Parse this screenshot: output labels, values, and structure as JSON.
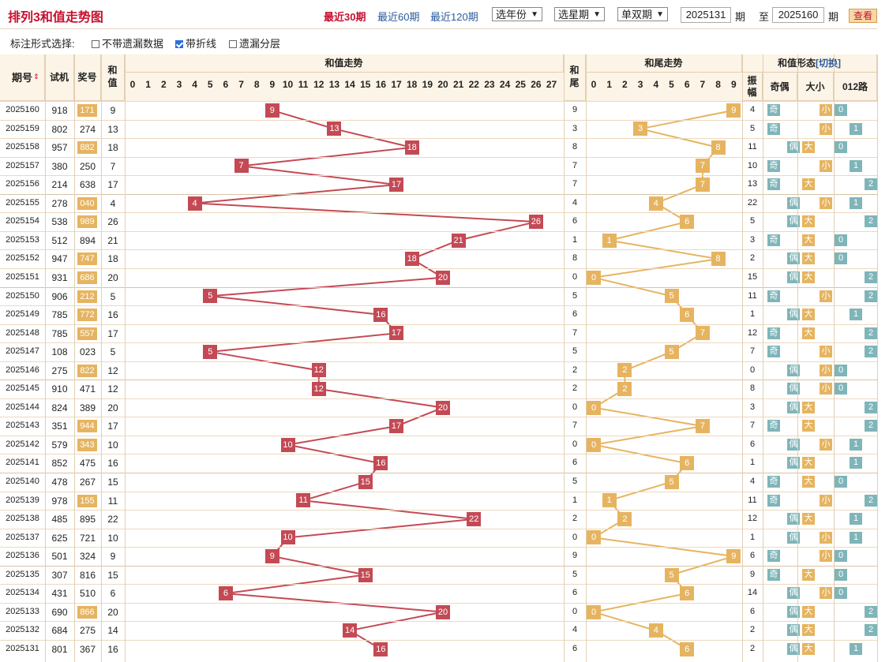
{
  "title": "排列3和值走势图",
  "quick_links": [
    "最近30期",
    "最近60期",
    "最近120期"
  ],
  "active_link": 0,
  "selects": [
    "选年份",
    "选星期",
    "单双期"
  ],
  "range": {
    "from": "2025131",
    "from_suffix": "期",
    "to_label": "至",
    "to": "2025160",
    "to_suffix": "期"
  },
  "view_button": "查看",
  "options": {
    "label": "标注形式选择:",
    "items": [
      {
        "label": "不带遗漏数据",
        "checked": false
      },
      {
        "label": "带折线",
        "checked": true
      },
      {
        "label": "遗漏分层",
        "checked": false
      }
    ]
  },
  "headers": {
    "issue": "期号",
    "trial": "试机",
    "prize": "奖号",
    "sum": "和值",
    "sum_trend": "和值走势",
    "tail": "和尾",
    "tail_trend": "和尾走势",
    "form": "和值形态",
    "switch": "[切换]",
    "amp": "振幅",
    "oe": "奇偶",
    "bs": "大小",
    "r012": "012路"
  },
  "sum_cols": [
    "0",
    "1",
    "2",
    "3",
    "4",
    "5",
    "6",
    "7",
    "8",
    "9",
    "10",
    "11",
    "12",
    "13",
    "14",
    "15",
    "16",
    "17",
    "18",
    "19",
    "20",
    "21",
    "22",
    "23",
    "24",
    "25",
    "26",
    "27"
  ],
  "tail_cols": [
    "0",
    "1",
    "2",
    "3",
    "4",
    "5",
    "6",
    "7",
    "8",
    "9"
  ],
  "rows": [
    {
      "issue": "2025160",
      "trial": "918",
      "prize": "171",
      "prize_hl": true,
      "sum": 9,
      "tail": 9,
      "amp": 4,
      "oe": "奇",
      "bs": "小",
      "r012": 0
    },
    {
      "issue": "2025159",
      "trial": "802",
      "prize": "274",
      "prize_hl": false,
      "sum": 13,
      "tail": 3,
      "amp": 5,
      "oe": "奇",
      "bs": "小",
      "r012": 1
    },
    {
      "issue": "2025158",
      "trial": "957",
      "prize": "882",
      "prize_hl": true,
      "sum": 18,
      "tail": 8,
      "amp": 11,
      "oe": "偶",
      "bs": "大",
      "r012": 0
    },
    {
      "issue": "2025157",
      "trial": "380",
      "prize": "250",
      "prize_hl": false,
      "sum": 7,
      "tail": 7,
      "amp": 10,
      "oe": "奇",
      "bs": "小",
      "r012": 1
    },
    {
      "issue": "2025156",
      "trial": "214",
      "prize": "638",
      "prize_hl": false,
      "sum": 17,
      "tail": 7,
      "amp": 13,
      "oe": "奇",
      "bs": "大",
      "r012": 2
    },
    {
      "issue": "2025155",
      "trial": "278",
      "prize": "040",
      "prize_hl": true,
      "sum": 4,
      "tail": 4,
      "amp": 22,
      "oe": "偶",
      "bs": "小",
      "r012": 1
    },
    {
      "issue": "2025154",
      "trial": "538",
      "prize": "989",
      "prize_hl": true,
      "sum": 26,
      "tail": 6,
      "amp": 5,
      "oe": "偶",
      "bs": "大",
      "r012": 2
    },
    {
      "issue": "2025153",
      "trial": "512",
      "prize": "894",
      "prize_hl": false,
      "sum": 21,
      "tail": 1,
      "amp": 3,
      "oe": "奇",
      "bs": "大",
      "r012": 0
    },
    {
      "issue": "2025152",
      "trial": "947",
      "prize": "747",
      "prize_hl": true,
      "sum": 18,
      "tail": 8,
      "amp": 2,
      "oe": "偶",
      "bs": "大",
      "r012": 0
    },
    {
      "issue": "2025151",
      "trial": "931",
      "prize": "686",
      "prize_hl": true,
      "sum": 20,
      "tail": 0,
      "amp": 15,
      "oe": "偶",
      "bs": "大",
      "r012": 2
    },
    {
      "issue": "2025150",
      "trial": "906",
      "prize": "212",
      "prize_hl": true,
      "sum": 5,
      "tail": 5,
      "amp": 11,
      "oe": "奇",
      "bs": "小",
      "r012": 2
    },
    {
      "issue": "2025149",
      "trial": "785",
      "prize": "772",
      "prize_hl": true,
      "sum": 16,
      "tail": 6,
      "amp": 1,
      "oe": "偶",
      "bs": "大",
      "r012": 1
    },
    {
      "issue": "2025148",
      "trial": "785",
      "prize": "557",
      "prize_hl": true,
      "sum": 17,
      "tail": 7,
      "amp": 12,
      "oe": "奇",
      "bs": "大",
      "r012": 2
    },
    {
      "issue": "2025147",
      "trial": "108",
      "prize": "023",
      "prize_hl": false,
      "sum": 5,
      "tail": 5,
      "amp": 7,
      "oe": "奇",
      "bs": "小",
      "r012": 2
    },
    {
      "issue": "2025146",
      "trial": "275",
      "prize": "822",
      "prize_hl": true,
      "sum": 12,
      "tail": 2,
      "amp": 0,
      "oe": "偶",
      "bs": "小",
      "r012": 0
    },
    {
      "issue": "2025145",
      "trial": "910",
      "prize": "471",
      "prize_hl": false,
      "sum": 12,
      "tail": 2,
      "amp": 8,
      "oe": "偶",
      "bs": "小",
      "r012": 0
    },
    {
      "issue": "2025144",
      "trial": "824",
      "prize": "389",
      "prize_hl": false,
      "sum": 20,
      "tail": 0,
      "amp": 3,
      "oe": "偶",
      "bs": "大",
      "r012": 2
    },
    {
      "issue": "2025143",
      "trial": "351",
      "prize": "944",
      "prize_hl": true,
      "sum": 17,
      "tail": 7,
      "amp": 7,
      "oe": "奇",
      "bs": "大",
      "r012": 2
    },
    {
      "issue": "2025142",
      "trial": "579",
      "prize": "343",
      "prize_hl": true,
      "sum": 10,
      "tail": 0,
      "amp": 6,
      "oe": "偶",
      "bs": "小",
      "r012": 1
    },
    {
      "issue": "2025141",
      "trial": "852",
      "prize": "475",
      "prize_hl": false,
      "sum": 16,
      "tail": 6,
      "amp": 1,
      "oe": "偶",
      "bs": "大",
      "r012": 1
    },
    {
      "issue": "2025140",
      "trial": "478",
      "prize": "267",
      "prize_hl": false,
      "sum": 15,
      "tail": 5,
      "amp": 4,
      "oe": "奇",
      "bs": "大",
      "r012": 0
    },
    {
      "issue": "2025139",
      "trial": "978",
      "prize": "155",
      "prize_hl": true,
      "sum": 11,
      "tail": 1,
      "amp": 11,
      "oe": "奇",
      "bs": "小",
      "r012": 2
    },
    {
      "issue": "2025138",
      "trial": "485",
      "prize": "895",
      "prize_hl": false,
      "sum": 22,
      "tail": 2,
      "amp": 12,
      "oe": "偶",
      "bs": "大",
      "r012": 1
    },
    {
      "issue": "2025137",
      "trial": "625",
      "prize": "721",
      "prize_hl": false,
      "sum": 10,
      "tail": 0,
      "amp": 1,
      "oe": "偶",
      "bs": "小",
      "r012": 1
    },
    {
      "issue": "2025136",
      "trial": "501",
      "prize": "324",
      "prize_hl": false,
      "sum": 9,
      "tail": 9,
      "amp": 6,
      "oe": "奇",
      "bs": "小",
      "r012": 0
    },
    {
      "issue": "2025135",
      "trial": "307",
      "prize": "816",
      "prize_hl": false,
      "sum": 15,
      "tail": 5,
      "amp": 9,
      "oe": "奇",
      "bs": "大",
      "r012": 0
    },
    {
      "issue": "2025134",
      "trial": "431",
      "prize": "510",
      "prize_hl": false,
      "sum": 6,
      "tail": 6,
      "amp": 14,
      "oe": "偶",
      "bs": "小",
      "r012": 0
    },
    {
      "issue": "2025133",
      "trial": "690",
      "prize": "866",
      "prize_hl": true,
      "sum": 20,
      "tail": 0,
      "amp": 6,
      "oe": "偶",
      "bs": "大",
      "r012": 2
    },
    {
      "issue": "2025132",
      "trial": "684",
      "prize": "275",
      "prize_hl": false,
      "sum": 14,
      "tail": 4,
      "amp": 2,
      "oe": "偶",
      "bs": "大",
      "r012": 2
    },
    {
      "issue": "2025131",
      "trial": "801",
      "prize": "367",
      "prize_hl": false,
      "sum": 16,
      "tail": 6,
      "amp": 2,
      "oe": "偶",
      "bs": "大",
      "r012": 1
    }
  ],
  "colors": {
    "sum_mark": "#c34a55",
    "tail_mark": "#e6b460",
    "header_bg": "#fcf4e6",
    "title": "#c8102e"
  }
}
